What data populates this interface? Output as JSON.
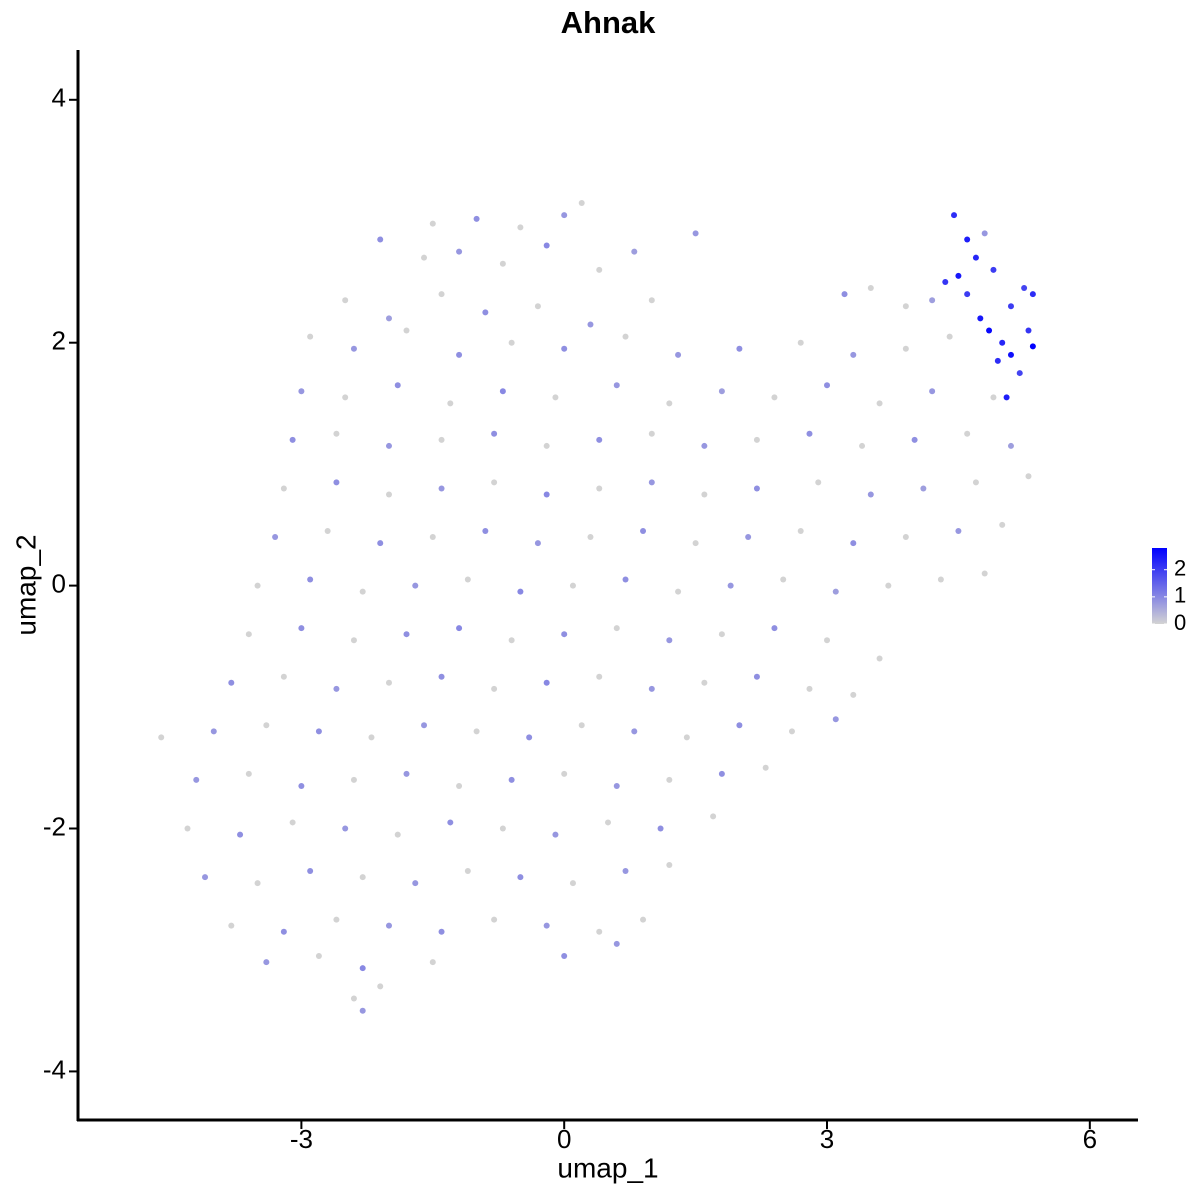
{
  "chart_data": {
    "type": "scatter",
    "title": "Ahnak",
    "x_label": "umap_1",
    "y_label": "umap_2",
    "xlim": [
      -5.55,
      6.55
    ],
    "ylim": [
      -4.4,
      4.41
    ],
    "xticks": [
      -3,
      0,
      3,
      6
    ],
    "yticks": [
      -4,
      -2,
      0,
      2,
      4
    ],
    "color_scale": {
      "low": "#d3d3d3",
      "high": "#0000ff",
      "lim": [
        0,
        2.8
      ],
      "ticks": [
        0,
        1,
        2
      ]
    },
    "x": [
      -1.5,
      -1.0,
      -0.5,
      0.0,
      0.2,
      -2.1,
      -1.6,
      -1.2,
      -0.7,
      -0.2,
      0.4,
      0.8,
      1.5,
      4.45,
      4.6,
      4.8,
      4.7,
      4.5,
      4.35,
      4.9,
      5.25,
      5.35,
      5.1,
      4.85,
      5.0,
      5.35,
      5.1,
      4.95,
      5.2,
      5.05,
      4.6,
      4.75,
      5.3,
      -2.5,
      -2.0,
      -1.4,
      -0.9,
      -0.3,
      0.3,
      1.0,
      3.2,
      3.5,
      3.9,
      4.2,
      -2.9,
      -2.4,
      -1.8,
      -1.2,
      -0.6,
      0.0,
      0.7,
      1.3,
      2.0,
      2.7,
      3.3,
      3.9,
      4.4,
      -3.0,
      -2.5,
      -1.9,
      -1.3,
      -0.7,
      -0.1,
      0.6,
      1.2,
      1.8,
      2.4,
      3.0,
      3.6,
      4.2,
      4.9,
      -3.1,
      -2.6,
      -2.0,
      -1.4,
      -0.8,
      -0.2,
      0.4,
      1.0,
      1.6,
      2.2,
      2.8,
      3.4,
      4.0,
      4.6,
      5.1,
      -3.2,
      -2.6,
      -2.0,
      -1.4,
      -0.8,
      -0.2,
      0.4,
      1.0,
      1.6,
      2.2,
      2.9,
      3.5,
      4.1,
      4.7,
      5.3,
      -3.3,
      -2.7,
      -2.1,
      -1.5,
      -0.9,
      -0.3,
      0.3,
      0.9,
      1.5,
      2.1,
      2.7,
      3.3,
      3.9,
      4.5,
      5.0,
      -3.5,
      -2.9,
      -2.3,
      -1.7,
      -1.1,
      -0.5,
      0.1,
      0.7,
      1.3,
      1.9,
      2.5,
      3.1,
      3.7,
      4.3,
      4.8,
      -3.6,
      -3.0,
      -2.4,
      -1.8,
      -1.2,
      -0.6,
      0.0,
      0.6,
      1.2,
      1.8,
      2.4,
      3.0,
      3.6,
      -3.8,
      -3.2,
      -2.6,
      -2.0,
      -1.4,
      -0.8,
      -0.2,
      0.4,
      1.0,
      1.6,
      2.2,
      2.8,
      3.3,
      -4.6,
      -4.0,
      -3.4,
      -2.8,
      -2.2,
      -1.6,
      -1.0,
      -0.4,
      0.2,
      0.8,
      1.4,
      2.0,
      2.6,
      3.1,
      -4.2,
      -3.6,
      -3.0,
      -2.4,
      -1.8,
      -1.2,
      -0.6,
      0.0,
      0.6,
      1.2,
      1.8,
      2.3,
      -4.3,
      -3.7,
      -3.1,
      -2.5,
      -1.9,
      -1.3,
      -0.7,
      -0.1,
      0.5,
      1.1,
      1.7,
      -4.1,
      -3.5,
      -2.9,
      -2.3,
      -1.7,
      -1.1,
      -0.5,
      0.1,
      0.7,
      1.2,
      -3.8,
      -3.2,
      -2.6,
      -2.0,
      -1.4,
      -0.8,
      -0.2,
      0.4,
      0.9,
      -3.4,
      -2.8,
      -2.3,
      -1.5,
      0.0,
      0.6,
      -2.3,
      -2.1,
      -2.4
    ],
    "y": [
      2.98,
      3.02,
      2.95,
      3.05,
      3.15,
      2.85,
      2.7,
      2.75,
      2.65,
      2.8,
      2.6,
      2.75,
      2.9,
      3.05,
      2.85,
      2.9,
      2.7,
      2.55,
      2.5,
      2.6,
      2.45,
      2.4,
      2.3,
      2.1,
      2.0,
      1.97,
      1.9,
      1.85,
      1.75,
      1.55,
      2.4,
      2.2,
      2.1,
      2.35,
      2.2,
      2.4,
      2.25,
      2.3,
      2.15,
      2.35,
      2.4,
      2.45,
      2.3,
      2.35,
      2.05,
      1.95,
      2.1,
      1.9,
      2.0,
      1.95,
      2.05,
      1.9,
      1.95,
      2.0,
      1.9,
      1.95,
      2.05,
      1.6,
      1.55,
      1.65,
      1.5,
      1.6,
      1.55,
      1.65,
      1.5,
      1.6,
      1.55,
      1.65,
      1.5,
      1.6,
      1.55,
      1.2,
      1.25,
      1.15,
      1.2,
      1.25,
      1.15,
      1.2,
      1.25,
      1.15,
      1.2,
      1.25,
      1.15,
      1.2,
      1.25,
      1.15,
      0.8,
      0.85,
      0.75,
      0.8,
      0.85,
      0.75,
      0.8,
      0.85,
      0.75,
      0.8,
      0.85,
      0.75,
      0.8,
      0.85,
      0.9,
      0.4,
      0.45,
      0.35,
      0.4,
      0.45,
      0.35,
      0.4,
      0.45,
      0.35,
      0.4,
      0.45,
      0.35,
      0.4,
      0.45,
      0.5,
      0.0,
      0.05,
      -0.05,
      0.0,
      0.05,
      -0.05,
      0.0,
      0.05,
      -0.05,
      0.0,
      0.05,
      -0.05,
      0.0,
      0.05,
      0.1,
      -0.4,
      -0.35,
      -0.45,
      -0.4,
      -0.35,
      -0.45,
      -0.4,
      -0.35,
      -0.45,
      -0.4,
      -0.35,
      -0.45,
      -0.6,
      -0.8,
      -0.75,
      -0.85,
      -0.8,
      -0.75,
      -0.85,
      -0.8,
      -0.75,
      -0.85,
      -0.8,
      -0.75,
      -0.85,
      -0.9,
      -1.25,
      -1.2,
      -1.15,
      -1.2,
      -1.25,
      -1.15,
      -1.2,
      -1.25,
      -1.15,
      -1.2,
      -1.25,
      -1.15,
      -1.2,
      -1.1,
      -1.6,
      -1.55,
      -1.65,
      -1.6,
      -1.55,
      -1.65,
      -1.6,
      -1.55,
      -1.65,
      -1.6,
      -1.55,
      -1.5,
      -2.0,
      -2.05,
      -1.95,
      -2.0,
      -2.05,
      -1.95,
      -2.0,
      -2.05,
      -1.95,
      -2.0,
      -1.9,
      -2.4,
      -2.45,
      -2.35,
      -2.4,
      -2.45,
      -2.35,
      -2.4,
      -2.45,
      -2.35,
      -2.3,
      -2.8,
      -2.85,
      -2.75,
      -2.8,
      -2.85,
      -2.75,
      -2.8,
      -2.85,
      -2.75,
      -3.1,
      -3.05,
      -3.15,
      -3.1,
      -3.05,
      -2.95,
      -3.5,
      -3.3,
      -3.4
    ],
    "values": [
      0,
      0.9,
      0,
      0.8,
      0,
      0.9,
      0,
      0.8,
      0,
      1.0,
      0,
      0.7,
      0.8,
      2.2,
      2.4,
      0.8,
      2.3,
      2.5,
      2.1,
      2.0,
      1.9,
      2.2,
      2.0,
      2.7,
      2.3,
      2.8,
      2.6,
      2.2,
      1.9,
      2.4,
      2.0,
      2.5,
      2.1,
      0,
      0.7,
      0,
      0.9,
      0,
      0.8,
      0,
      0.9,
      0,
      0,
      0.7,
      0,
      0.8,
      0,
      0.9,
      0,
      0.9,
      0,
      0.8,
      0.9,
      0,
      0.8,
      0,
      0,
      0.8,
      0,
      0.9,
      0,
      1.0,
      0,
      0.8,
      0,
      0.7,
      0,
      0.9,
      0,
      0.8,
      0,
      0.9,
      0,
      0.8,
      0,
      0.9,
      0,
      0.9,
      0,
      0.8,
      0,
      0.9,
      0,
      0.9,
      0,
      0.7,
      0,
      0.9,
      0,
      0.8,
      0,
      1.0,
      0,
      0.8,
      0,
      0.9,
      0,
      0.8,
      0.7,
      0,
      0,
      0.8,
      0,
      0.9,
      0,
      0.9,
      0.8,
      0,
      0.9,
      0,
      0.8,
      0,
      0.9,
      0,
      0.8,
      0,
      0,
      0.9,
      0,
      0.8,
      0,
      1.0,
      0,
      0.9,
      0,
      0.8,
      0,
      0.7,
      0,
      0,
      0,
      0,
      0.9,
      0,
      0.9,
      1.0,
      0,
      0.9,
      0,
      0.8,
      0,
      0.9,
      0,
      0,
      0.9,
      0,
      0.8,
      0,
      0.9,
      0,
      1.0,
      0,
      0.8,
      0,
      0.9,
      0,
      0,
      0,
      0.8,
      0,
      0.9,
      0,
      0.8,
      0,
      0.9,
      0,
      0.8,
      0,
      0.9,
      0,
      0.8,
      0.8,
      0,
      0.9,
      0,
      0.8,
      0,
      0.9,
      0,
      0.8,
      0,
      0.9,
      0,
      0,
      0.9,
      0,
      0.8,
      0,
      0.9,
      0,
      0.8,
      0,
      0.9,
      0,
      0.8,
      0,
      0.9,
      0,
      0.8,
      0,
      0.9,
      0,
      0.8,
      0,
      0,
      0.9,
      0,
      0.8,
      0.9,
      0,
      0.8,
      0,
      0,
      0.8,
      0,
      1.0,
      0,
      0.9,
      0.8,
      0.8,
      0,
      0
    ]
  }
}
